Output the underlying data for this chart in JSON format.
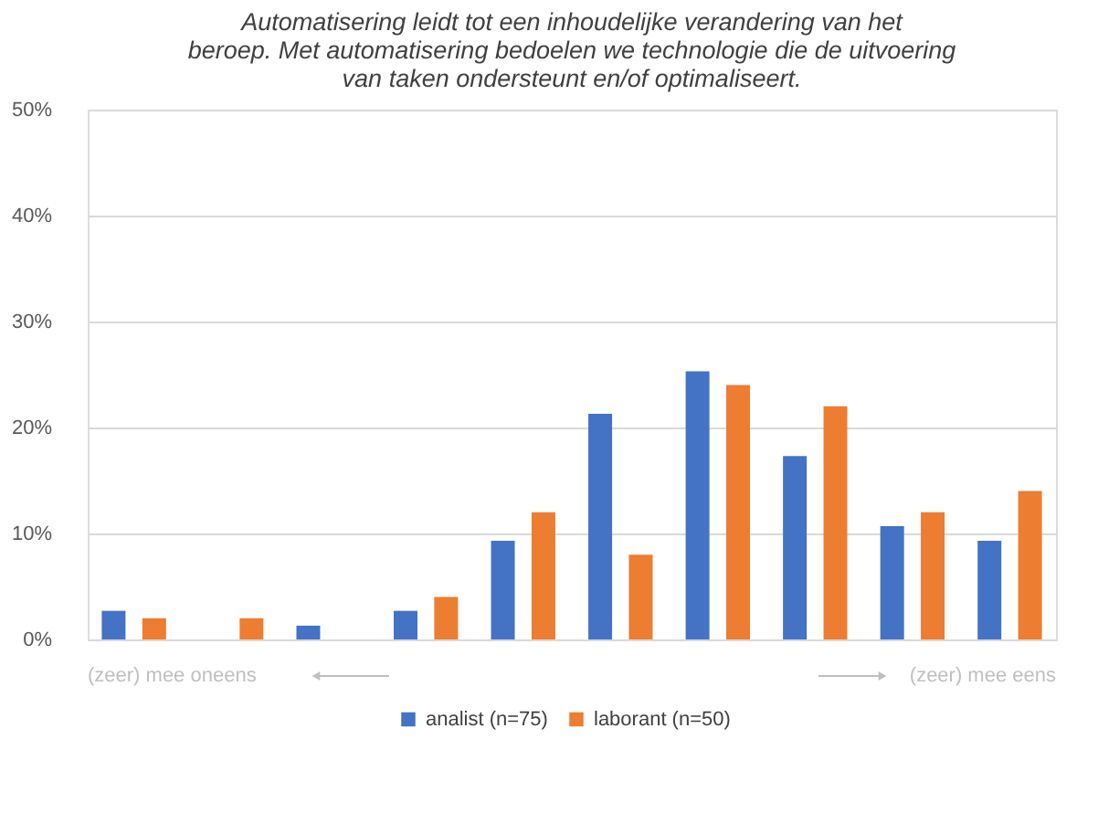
{
  "chart_data": {
    "type": "bar",
    "title": "Automatisering leidt tot een inhoudelijke verandering van het beroep. Met automatisering bedoelen we technologie die de uitvoering van taken ondersteunt en/of optimaliseert.",
    "categories": [
      null,
      null,
      null,
      null,
      null,
      null,
      null,
      null,
      null,
      null
    ],
    "series": [
      {
        "name": "analist (n=75)",
        "color": "#4472c4",
        "values": [
          2.7,
          0,
          1.3,
          2.7,
          9.3,
          21.3,
          25.3,
          17.3,
          10.7,
          9.3
        ]
      },
      {
        "name": "laborant (n=50)",
        "color": "#ed7d31",
        "values": [
          2,
          2,
          0,
          4,
          12,
          8,
          24,
          22,
          12,
          14
        ]
      }
    ],
    "ylim": [
      0,
      50
    ],
    "yticks": [
      {
        "value": 0,
        "label": "0%"
      },
      {
        "value": 10,
        "label": "10%"
      },
      {
        "value": 20,
        "label": "20%"
      },
      {
        "value": 30,
        "label": "30%"
      },
      {
        "value": 40,
        "label": "40%"
      },
      {
        "value": 50,
        "label": "50%"
      }
    ],
    "annotations": [
      "(zeer) mee oneens",
      "(zeer) mee eens"
    ],
    "grid": "y",
    "legend": "bottom"
  }
}
